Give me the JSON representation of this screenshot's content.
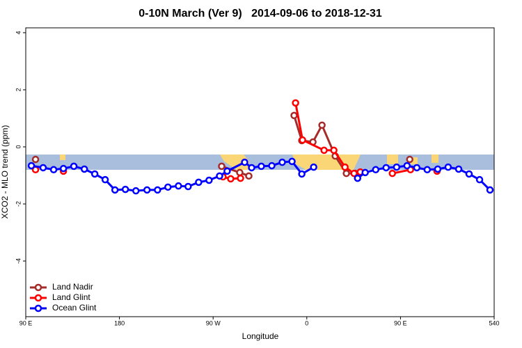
{
  "chart_data": {
    "type": "line",
    "title": "0-10N March (Ver 9)   2014-09-06 to 2018-12-31",
    "x_label": "Longitude",
    "y_label": "XCO2 - MLO trend (ppm)",
    "xlim": [
      90,
      540
    ],
    "ylim": [
      -5.95,
      4.17
    ],
    "xticks": [
      {
        "value": 90,
        "label": "90 E"
      },
      180,
      {
        "value": 270,
        "label": "90 W"
      },
      {
        "value": 360,
        "label": "0"
      },
      {
        "value": 450,
        "label": "90 E"
      },
      540
    ],
    "yticks": [
      -4,
      -2,
      0,
      2,
      4
    ],
    "legend": "bottom-left",
    "series": [
      {
        "name": "Land Nadir",
        "color": "#a52a2a",
        "x": [
          99.4,
          190,
          278.2,
          295.6,
          304.3,
          330,
          347.8,
          355.2,
          365.9,
          374.6,
          387.3,
          398,
          406.7,
          430,
          458.9
        ],
        "values": [
          -0.44,
          null,
          -0.68,
          -0.9,
          -1.02,
          null,
          1.1,
          0.22,
          0.17,
          0.76,
          -0.32,
          -0.93,
          -0.93,
          null,
          -0.44
        ]
      },
      {
        "name": "Land Glint",
        "color": "#ff0000",
        "x": [
          99.4,
          110,
          126.2,
          200,
          279.5,
          286.9,
          296.3,
          330,
          349.2,
          355.9,
          376.6,
          386,
          396.7,
          405.4,
          411.4,
          425,
          442.2,
          459.6,
          470,
          485.1
        ],
        "values": [
          -0.8,
          null,
          -0.85,
          null,
          -1.05,
          -1.12,
          -1.1,
          null,
          1.54,
          0.24,
          -0.12,
          -0.12,
          -0.71,
          -0.93,
          -0.88,
          null,
          -0.93,
          -0.8,
          null,
          -0.85
        ]
      },
      {
        "name": "Ocean Glint",
        "color": "#0000ff",
        "x": [
          95.4,
          106.7,
          116.8,
          126.2,
          136.2,
          146.3,
          156.3,
          166.3,
          175.7,
          185.7,
          195.8,
          206.5,
          216.6,
          226.6,
          236.7,
          246,
          256.1,
          266.1,
          276.2,
          283.5,
          300.3,
          307,
          316.3,
          326.4,
          336.4,
          345.8,
          355.2,
          366.6,
          390,
          408.8,
          416.1,
          426.2,
          436.2,
          446.3,
          456.3,
          465.7,
          475.7,
          485.8,
          495.8,
          505.9,
          515.9,
          526,
          536
        ],
        "values": [
          -0.66,
          -0.73,
          -0.8,
          -0.76,
          -0.68,
          -0.78,
          -0.95,
          -1.15,
          -1.51,
          -1.49,
          -1.54,
          -1.51,
          -1.51,
          -1.41,
          -1.37,
          -1.39,
          -1.24,
          -1.17,
          -1.02,
          -0.85,
          -0.54,
          -0.73,
          -0.68,
          -0.66,
          -0.54,
          -0.51,
          -0.95,
          -0.71,
          null,
          -1.1,
          -0.9,
          -0.8,
          -0.73,
          -0.71,
          -0.66,
          -0.73,
          -0.8,
          -0.78,
          -0.71,
          -0.78,
          -0.95,
          -1.15,
          -1.51
        ]
      }
    ]
  }
}
